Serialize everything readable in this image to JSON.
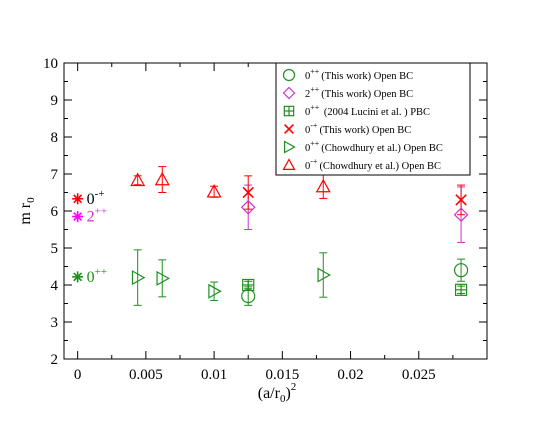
{
  "chart_data": {
    "type": "scatter",
    "xlabel": {
      "base": "(a/r",
      "sub": "0",
      "tail": ")",
      "sup": "2"
    },
    "ylabel": {
      "base": "m r",
      "sub": "0"
    },
    "xlim": [
      -0.001,
      0.03
    ],
    "ylim": [
      2,
      10
    ],
    "xticks": [
      0,
      0.005,
      0.01,
      0.015,
      0.02,
      0.025
    ],
    "xtick_labels": [
      "0",
      "0.005",
      "0.01",
      "0.015",
      "0.02",
      "0.025"
    ],
    "yticks": [
      2,
      3,
      4,
      5,
      6,
      7,
      8,
      9,
      10
    ],
    "ytick_labels": [
      "2",
      "3",
      "4",
      "5",
      "6",
      "7",
      "8",
      "9",
      "10"
    ],
    "grid": false,
    "legend_position": "top-right",
    "series": [
      {
        "key": "s1",
        "marker": "circle",
        "color": "#1f8f1f",
        "legend": {
          "state": "0",
          "sup": "++",
          "source": "(This work) Open BC"
        },
        "points": [
          {
            "x": 0.0125,
            "y": 3.7,
            "err": 0.25
          },
          {
            "x": 0.0281,
            "y": 4.4,
            "err": 0.3
          }
        ]
      },
      {
        "key": "s2",
        "marker": "diamond",
        "color": "#cc33cc",
        "legend": {
          "state": "2",
          "sup": "++",
          "source": "(This work) Open BC"
        },
        "points": [
          {
            "x": 0.0125,
            "y": 6.1,
            "err": 0.6
          },
          {
            "x": 0.0281,
            "y": 5.9,
            "err": 0.75
          }
        ]
      },
      {
        "key": "s3",
        "marker": "square-plus",
        "color": "#1f8f1f",
        "legend": {
          "state": "0",
          "sup": "++",
          "source": " (2004 Lucini et al. ) PBC"
        },
        "points": [
          {
            "x": 0.0125,
            "y": 4.0,
            "err": 0.1
          },
          {
            "x": 0.0281,
            "y": 3.87,
            "err": 0.1
          }
        ]
      },
      {
        "key": "s4",
        "marker": "cross",
        "color": "#ff0000",
        "legend": {
          "state": "0",
          "sup": "-+",
          "source": "(This work) Open BC"
        },
        "points": [
          {
            "x": 0.0125,
            "y": 6.5,
            "err": 0.45
          },
          {
            "x": 0.0281,
            "y": 6.3,
            "err": 0.4
          }
        ]
      },
      {
        "key": "s5",
        "marker": "triangle-right",
        "color": "#1f8f1f",
        "legend": {
          "state": "0",
          "sup": "++",
          "source": "(Chowdhury et al.) Open BC"
        },
        "points": [
          {
            "x": 0.0044,
            "y": 4.2,
            "err": 0.75
          },
          {
            "x": 0.0062,
            "y": 4.18,
            "err": 0.5
          },
          {
            "x": 0.01,
            "y": 3.83,
            "err": 0.25
          },
          {
            "x": 0.018,
            "y": 4.27,
            "err": 0.6
          }
        ]
      },
      {
        "key": "s6",
        "marker": "triangle-up",
        "color": "#ff0000",
        "legend": {
          "state": "0",
          "sup": "-+",
          "source": "(Chowdhury et al.) Open BC"
        },
        "points": [
          {
            "x": 0.0044,
            "y": 6.83,
            "err": 0.12
          },
          {
            "x": 0.0062,
            "y": 6.85,
            "err": 0.35
          },
          {
            "x": 0.01,
            "y": 6.52,
            "err": 0.15
          },
          {
            "x": 0.018,
            "y": 6.66,
            "err": 0.32
          }
        ]
      }
    ],
    "continuum": [
      {
        "key": "c1",
        "x": 0,
        "y": 6.33,
        "color": "#ff0000",
        "label": "0",
        "sup": "-+",
        "label_color": "#000000"
      },
      {
        "key": "c2",
        "x": 0,
        "y": 5.85,
        "color": "#ff00ff",
        "label": "2",
        "sup": "++",
        "label_color": "#cc33cc"
      },
      {
        "key": "c3",
        "x": 0,
        "y": 4.22,
        "color": "#1f8f1f",
        "label": "0",
        "sup": "++",
        "label_color": "#1f8f1f"
      }
    ]
  }
}
